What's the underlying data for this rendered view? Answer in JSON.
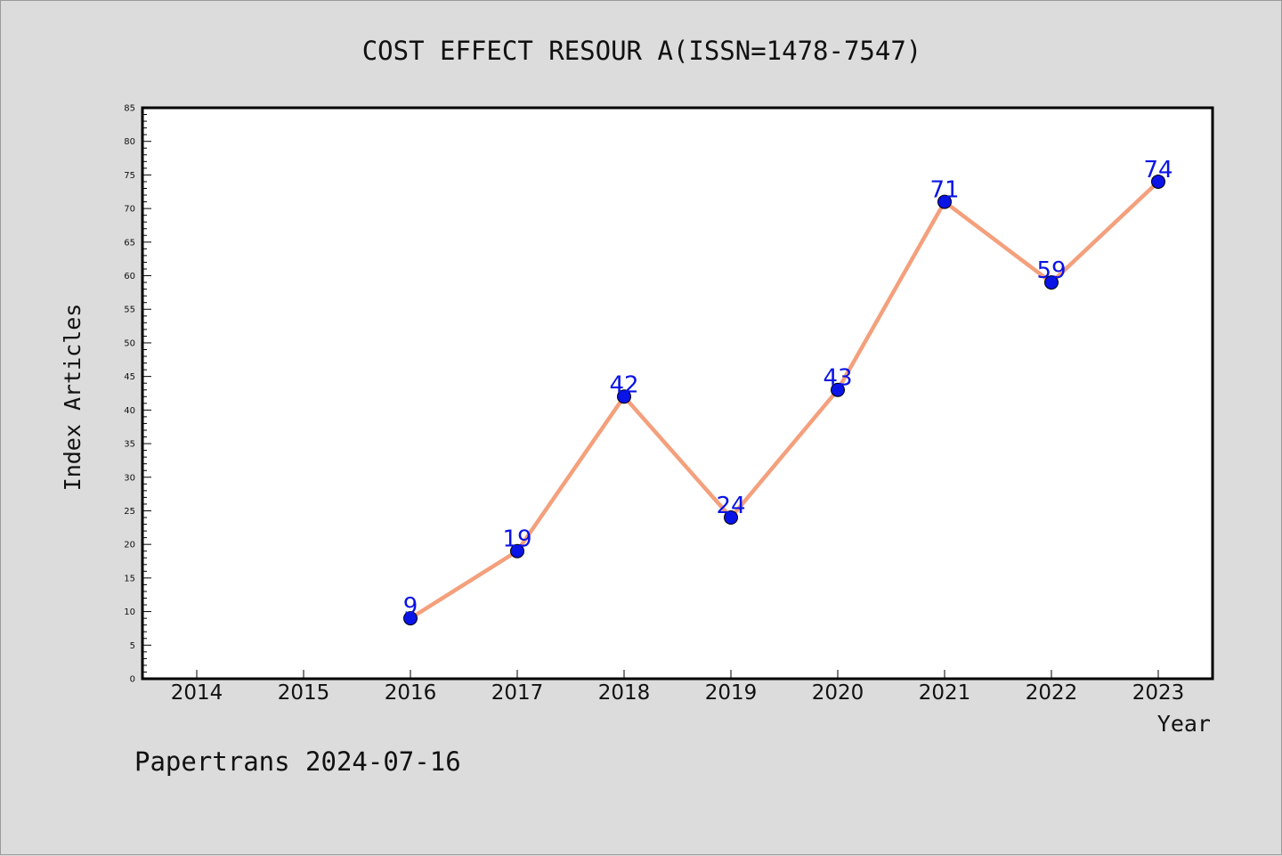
{
  "chart_data": {
    "type": "line",
    "title": "COST EFFECT RESOUR A(ISSN=1478-7547)",
    "xlabel": "Year",
    "ylabel": "Index Articles",
    "categories": [
      "2014",
      "2015",
      "2016",
      "2017",
      "2018",
      "2019",
      "2020",
      "2021",
      "2022",
      "2023"
    ],
    "series": [
      {
        "x": [
          "2016",
          "2017",
          "2018",
          "2019",
          "2020",
          "2021",
          "2022",
          "2023"
        ],
        "values": [
          9,
          19,
          42,
          24,
          43,
          71,
          59,
          74
        ],
        "line_color": "#f4a07c",
        "marker_color": "#0a14e6",
        "label_color": "#0a14e6"
      }
    ],
    "ylim": [
      0,
      85
    ],
    "yticks": [
      0,
      5,
      10,
      15,
      20,
      25,
      30,
      35,
      40,
      45,
      50,
      55,
      60,
      65,
      70,
      75,
      80,
      85
    ],
    "grid": false,
    "legend": "none"
  },
  "footer": {
    "credit": "Papertrans 2024-07-16"
  },
  "colors": {
    "background": "#dcdcdc",
    "plot_background": "#ffffff",
    "axis": "#000000"
  }
}
